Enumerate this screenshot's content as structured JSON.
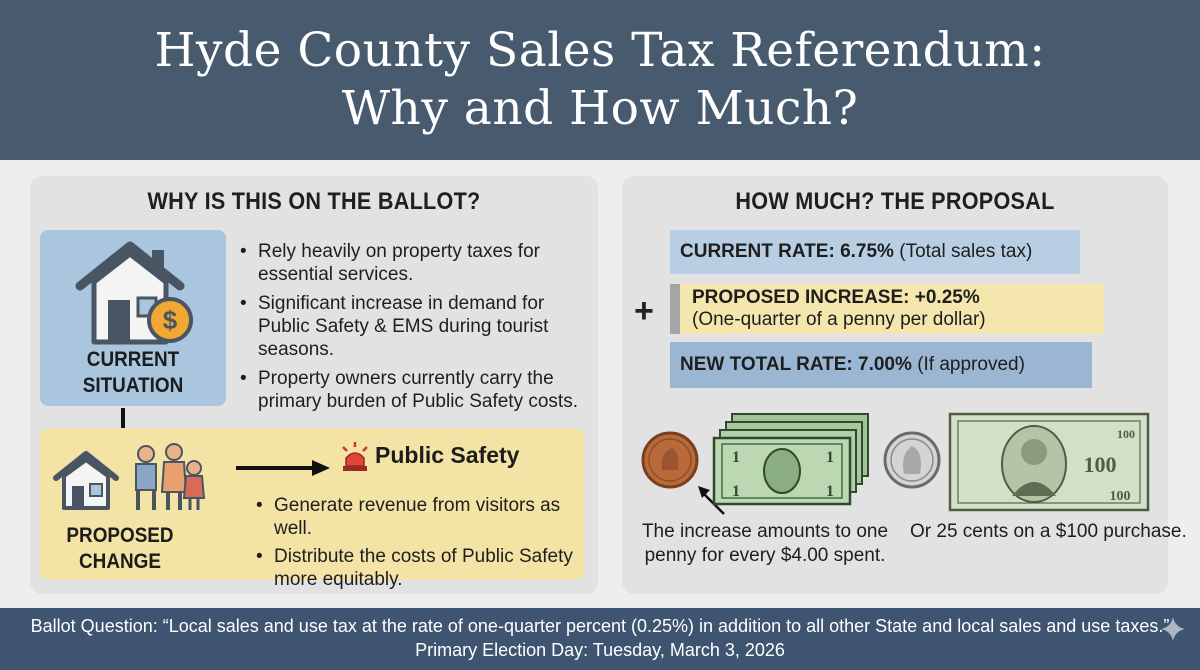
{
  "header": {
    "title_line1": "Hyde County Sales Tax Referendum:",
    "title_line2": "Why and How Much?"
  },
  "why": {
    "heading": "WHY IS THIS ON THE BALLOT?",
    "current": {
      "label_line1": "CURRENT",
      "label_line2": "SITUATION",
      "icon": "house-with-dollar-icon",
      "bullets": [
        "Rely heavily on property taxes for essential services.",
        "Significant increase in demand for Public Safety & EMS during tourist seasons.",
        "Property owners currently carry the primary burden of Public Safety costs."
      ]
    },
    "proposed": {
      "label_line1": "PROPOSED",
      "label_line2": "CHANGE",
      "icons": [
        "house-icon",
        "family-icon",
        "arrow-right-icon",
        "siren-icon"
      ],
      "target": "Public Safety",
      "bullets": [
        "Generate revenue from visitors as well.",
        "Distribute the costs of Public Safety more equitably."
      ]
    }
  },
  "how_much": {
    "heading": "HOW MUCH? THE PROPOSAL",
    "current_rate": {
      "label": "CURRENT RATE: 6.75%",
      "note": "(Total sales tax)"
    },
    "plus": "+",
    "increase": {
      "label": "PROPOSED INCREASE: +0.25%",
      "note": "(One-quarter of a penny per dollar)"
    },
    "new_rate": {
      "label": "NEW TOTAL RATE: 7.00%",
      "note": "(If approved)"
    },
    "caption_left_line1": "The increase amounts to one",
    "caption_left_line2": "penny for every $4.00 spent.",
    "caption_right": "Or 25 cents on a $100 purchase.",
    "illustrations": [
      "penny-icon",
      "dollar-bills-icon",
      "quarter-icon",
      "hundred-dollar-bill-icon"
    ]
  },
  "footer": {
    "ballot_question": "Ballot Question: “Local sales and use tax at the rate of one-quarter percent (0.25%) in addition to all other State and local sales and use taxes.”",
    "election_day": "Primary Election Day: Tuesday, March 3, 2026"
  },
  "colors": {
    "header_bg": "#475a6e",
    "footer_bg": "#3e5470",
    "current_box": "#a9c6de",
    "proposed_box": "#f3e4a6",
    "rate_current": "#b7cee3",
    "rate_increase": "#f5e6ad",
    "rate_new": "#9bb6d2"
  }
}
